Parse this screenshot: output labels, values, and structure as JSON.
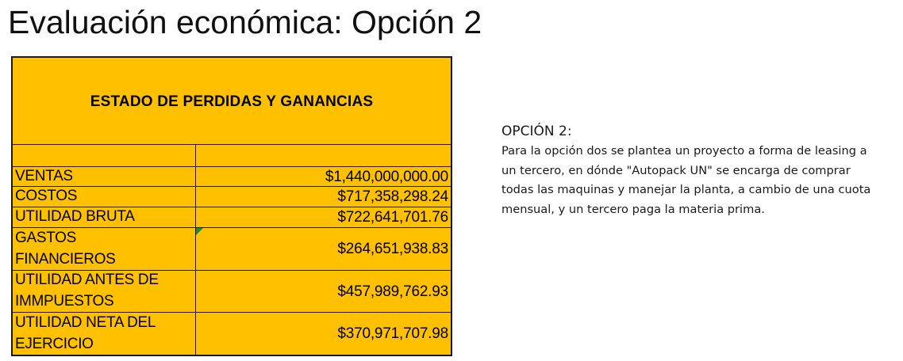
{
  "slide": {
    "title": "Evaluación económica: Opción 2"
  },
  "table": {
    "header": "ESTADO DE PERDIDAS Y GANANCIAS",
    "rows": [
      {
        "label": "VENTAS",
        "value": "$1,440,000,000.00"
      },
      {
        "label": "COSTOS",
        "value": "$717,358,298.24"
      },
      {
        "label": "UTILIDAD BRUTA",
        "value": "$722,641,701.76"
      },
      {
        "label": "GASTOS\nFINANCIEROS",
        "value": "$264,651,938.83"
      },
      {
        "label": "UTILIDAD ANTES DE\nIMMPUESTOS",
        "value": "$457,989,762.93"
      },
      {
        "label": "UTILIDAD NETA DEL\nEJERCICIO",
        "value": "$370,971,707.98"
      }
    ]
  },
  "note": {
    "heading": "OPCIÓN 2:",
    "body": "Para la opción dos se plantea un proyecto a forma de leasing a un tercero, en dónde \"Autopack UN\" se encarga de comprar todas las maquinas y manejar la planta, a cambio de una cuota mensual, y un tercero paga la materia prima."
  },
  "colors": {
    "table_fill": "#ffc000",
    "border": "#1a1a1a",
    "cell_marker": "#1e8a3a"
  }
}
